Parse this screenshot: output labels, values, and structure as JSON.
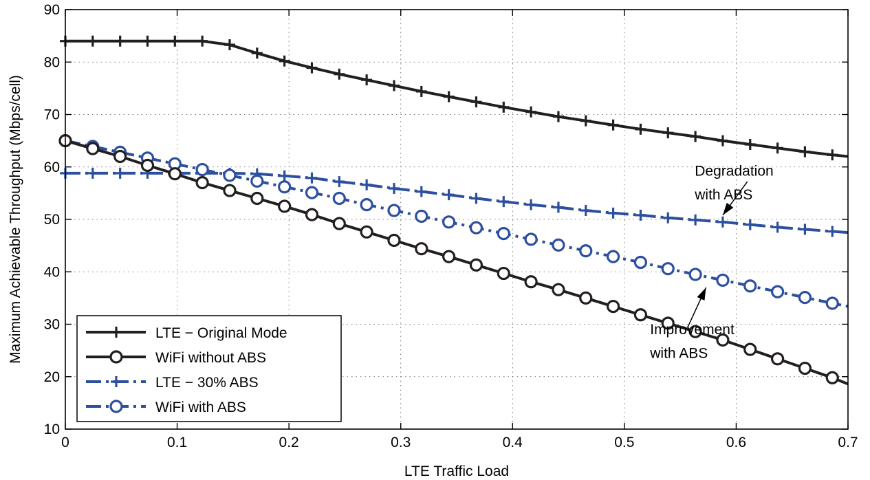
{
  "chart_data": {
    "type": "line",
    "title": "",
    "xlabel": "LTE Traffic Load",
    "ylabel": "Maximum Achievable Throughput (Mbps/cell)",
    "xlim": [
      0,
      0.7
    ],
    "ylim": [
      10,
      90
    ],
    "xticks": [
      "0",
      "0.1",
      "0.2",
      "0.3",
      "0.4",
      "0.5",
      "0.6",
      "0.7"
    ],
    "yticks": [
      "10",
      "20",
      "30",
      "40",
      "50",
      "60",
      "70",
      "80",
      "90"
    ],
    "grid": true,
    "legend_position": "bottom-left",
    "series": [
      {
        "name": "LTE − Original Mode",
        "color": "#231f20",
        "line_style": "solid",
        "marker": "plus",
        "x": [
          0,
          0.0245,
          0.049,
          0.0735,
          0.098,
          0.1225,
          0.147,
          0.1715,
          0.196,
          0.2205,
          0.245,
          0.2695,
          0.294,
          0.3185,
          0.343,
          0.3675,
          0.392,
          0.4165,
          0.441,
          0.4655,
          0.49,
          0.5145,
          0.539,
          0.5635,
          0.588,
          0.6125,
          0.637,
          0.6615,
          0.686,
          0.7
        ],
        "y": [
          84.0,
          84.0,
          84.0,
          84.0,
          84.0,
          84.0,
          83.3,
          81.7,
          80.2,
          78.9,
          77.7,
          76.6,
          75.5,
          74.4,
          73.4,
          72.4,
          71.4,
          70.5,
          69.6,
          68.8,
          68.0,
          67.2,
          66.5,
          65.8,
          65.0,
          64.3,
          63.6,
          62.9,
          62.3,
          62.0
        ]
      },
      {
        "name": "WiFi without ABS",
        "color": "#231f20",
        "line_style": "solid",
        "marker": "circle",
        "x": [
          0,
          0.0245,
          0.049,
          0.0735,
          0.098,
          0.1225,
          0.147,
          0.1715,
          0.196,
          0.2205,
          0.245,
          0.2695,
          0.294,
          0.3185,
          0.343,
          0.3675,
          0.392,
          0.4165,
          0.441,
          0.4655,
          0.49,
          0.5145,
          0.539,
          0.5635,
          0.588,
          0.6125,
          0.637,
          0.6615,
          0.686,
          0.7
        ],
        "y": [
          65.0,
          63.5,
          62.0,
          60.3,
          58.7,
          57.0,
          55.5,
          54.0,
          52.5,
          50.9,
          49.2,
          47.6,
          46.0,
          44.4,
          42.9,
          41.3,
          39.7,
          38.1,
          36.6,
          35.0,
          33.4,
          31.8,
          30.2,
          28.6,
          27.0,
          25.2,
          23.4,
          21.6,
          19.8,
          18.6
        ]
      },
      {
        "name": "LTE − 30% ABS",
        "color": "#2c4f9e",
        "line_style": "dash-dot",
        "marker": "plus",
        "x": [
          0,
          0.0245,
          0.049,
          0.0735,
          0.098,
          0.1225,
          0.147,
          0.1715,
          0.196,
          0.2205,
          0.245,
          0.2695,
          0.294,
          0.3185,
          0.343,
          0.3675,
          0.392,
          0.4165,
          0.441,
          0.4655,
          0.49,
          0.5145,
          0.539,
          0.5635,
          0.588,
          0.6125,
          0.637,
          0.6615,
          0.686,
          0.7
        ],
        "y": [
          58.8,
          58.8,
          58.8,
          58.8,
          58.8,
          58.8,
          58.8,
          58.7,
          58.3,
          57.9,
          57.2,
          56.6,
          55.9,
          55.3,
          54.7,
          54.0,
          53.4,
          52.8,
          52.3,
          51.7,
          51.2,
          50.8,
          50.3,
          49.9,
          49.5,
          49.0,
          48.5,
          48.1,
          47.7,
          47.5
        ]
      },
      {
        "name": "WiFi with ABS",
        "color": "#2c4f9e",
        "line_style": "dash-dot",
        "marker": "circle",
        "x": [
          0,
          0.0245,
          0.049,
          0.0735,
          0.098,
          0.1225,
          0.147,
          0.1715,
          0.196,
          0.2205,
          0.245,
          0.2695,
          0.294,
          0.3185,
          0.343,
          0.3675,
          0.392,
          0.4165,
          0.441,
          0.4655,
          0.49,
          0.5145,
          0.539,
          0.5635,
          0.588,
          0.6125,
          0.637,
          0.6615,
          0.686,
          0.7
        ],
        "y": [
          65.0,
          63.9,
          62.8,
          61.7,
          60.6,
          59.5,
          58.4,
          57.3,
          56.2,
          55.1,
          54.0,
          52.8,
          51.7,
          50.6,
          49.5,
          48.4,
          47.3,
          46.2,
          45.1,
          44.0,
          42.9,
          41.8,
          40.6,
          39.5,
          38.4,
          37.3,
          36.2,
          35.1,
          34.0,
          33.4
        ]
      }
    ],
    "annotations": [
      {
        "id": "degradation",
        "lines": [
          "Degradation",
          "with ABS"
        ],
        "text_x": 0.563,
        "text_y": [
          58.3,
          53.8
        ],
        "arrow_from": [
          0.61,
          57.2
        ],
        "arrow_to": [
          0.588,
          50.8
        ]
      },
      {
        "id": "improvement",
        "lines": [
          "Improvement",
          "with ABS"
        ],
        "text_x": 0.523,
        "text_y": [
          28.1,
          23.6
        ],
        "arrow_from": [
          0.557,
          29.6
        ],
        "arrow_to": [
          0.573,
          37.0
        ]
      }
    ]
  }
}
